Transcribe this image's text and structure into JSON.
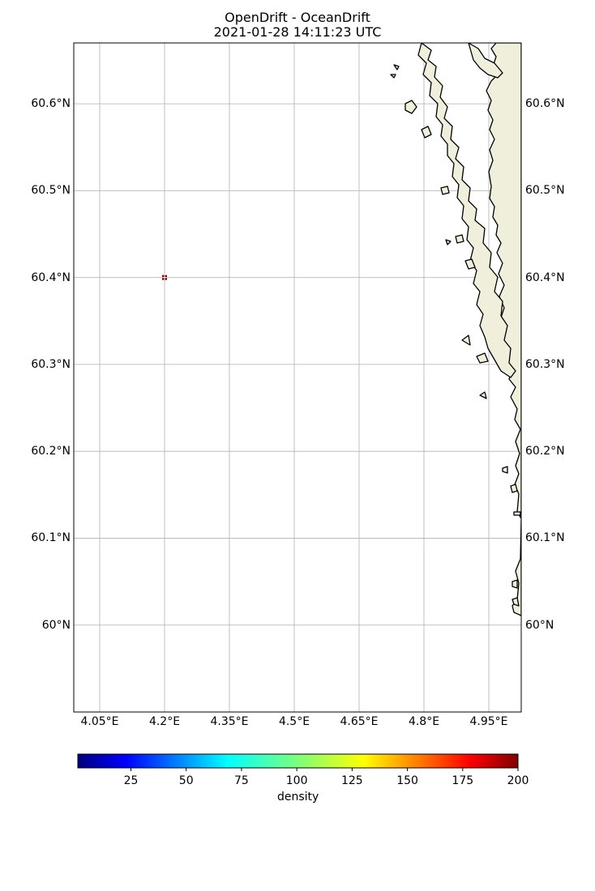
{
  "title": {
    "line1": "OpenDrift - OceanDrift",
    "line2": "2021-01-28 14:11:23 UTC"
  },
  "map": {
    "lon_range": [
      3.99,
      5.025
    ],
    "lat_range": [
      59.9,
      60.67
    ],
    "land_color": "#efefdb",
    "grid_color": "#b0b0b0",
    "x_ticks": [
      {
        "value": 4.05,
        "label": "4.05°E"
      },
      {
        "value": 4.2,
        "label": "4.2°E"
      },
      {
        "value": 4.35,
        "label": "4.35°E"
      },
      {
        "value": 4.5,
        "label": "4.5°E"
      },
      {
        "value": 4.65,
        "label": "4.65°E"
      },
      {
        "value": 4.8,
        "label": "4.8°E"
      },
      {
        "value": 4.95,
        "label": "4.95°E"
      }
    ],
    "y_ticks": [
      {
        "value": 60.6,
        "label": "60.6°N"
      },
      {
        "value": 60.5,
        "label": "60.5°N"
      },
      {
        "value": 60.4,
        "label": "60.4°N"
      },
      {
        "value": 60.3,
        "label": "60.3°N"
      },
      {
        "value": 60.2,
        "label": "60.2°N"
      },
      {
        "value": 60.1,
        "label": "60.1°N"
      },
      {
        "value": 60.0,
        "label": "60°N"
      }
    ],
    "particle": {
      "lon": 4.2,
      "lat": 60.4,
      "color": "#7f0000"
    }
  },
  "colorbar": {
    "label": "density",
    "min": 1,
    "max": 200,
    "colormap": "jet",
    "ticks": [
      {
        "value": 25,
        "label": "25"
      },
      {
        "value": 50,
        "label": "50"
      },
      {
        "value": 75,
        "label": "75"
      },
      {
        "value": 100,
        "label": "100"
      },
      {
        "value": 125,
        "label": "125"
      },
      {
        "value": 150,
        "label": "150"
      },
      {
        "value": 175,
        "label": "175"
      },
      {
        "value": 200,
        "label": "200"
      }
    ]
  }
}
